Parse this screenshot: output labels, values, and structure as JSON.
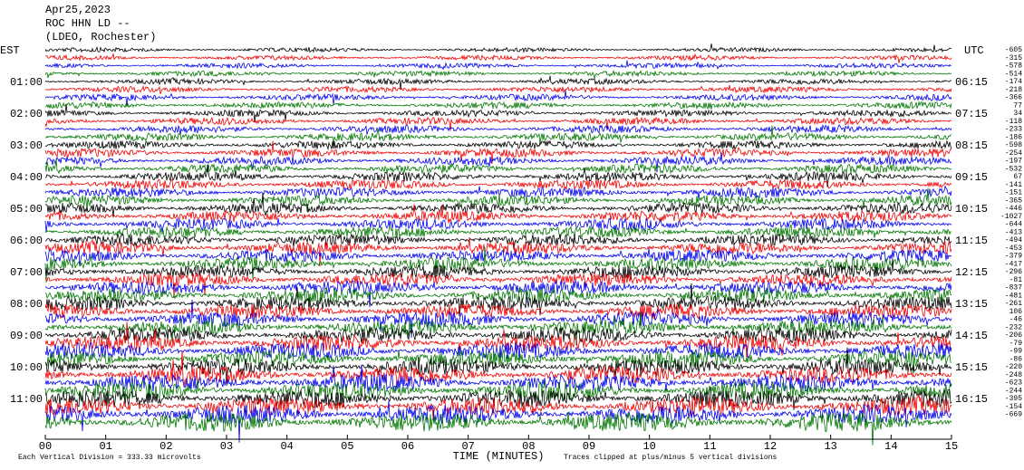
{
  "header": {
    "date": "Apr25,2023",
    "station": "ROC HHN LD --",
    "network": "(LDEO, Rochester)"
  },
  "left_axis": {
    "title": "EST",
    "labels": [
      "01:00",
      "02:00",
      "03:00",
      "04:00",
      "05:00",
      "06:00",
      "07:00",
      "08:00",
      "09:00",
      "10:00",
      "11:00"
    ]
  },
  "right_axis": {
    "title": "UTC",
    "labels": [
      "06:15",
      "07:15",
      "08:15",
      "09:15",
      "10:15",
      "11:15",
      "12:15",
      "13:15",
      "14:15",
      "15:15",
      "16:15"
    ]
  },
  "offsets": [
    -605,
    -315,
    -578,
    -514,
    -174,
    -218,
    -366,
    77,
    34,
    -118,
    -233,
    -186,
    -598,
    -254,
    -197,
    -532,
    67,
    -141,
    -151,
    -365,
    -446,
    -1027,
    -644,
    -413,
    -494,
    -453,
    -379,
    -417,
    -296,
    -81,
    -837,
    -481,
    -261,
    106,
    -46,
    -232,
    -206,
    -79,
    -99,
    -86,
    -220,
    -248,
    -623,
    -244,
    -395,
    -154,
    -669
  ],
  "x_axis": {
    "title": "TIME (MINUTES)",
    "ticks": [
      "00",
      "01",
      "02",
      "03",
      "04",
      "05",
      "06",
      "07",
      "08",
      "09",
      "10",
      "11",
      "12",
      "13",
      "14",
      "15"
    ]
  },
  "footer": {
    "scale": "Each Vertical Division =  333.33 microvolts",
    "clip": "Traces clipped at plus/minus 5 vertical divisions"
  }
}
